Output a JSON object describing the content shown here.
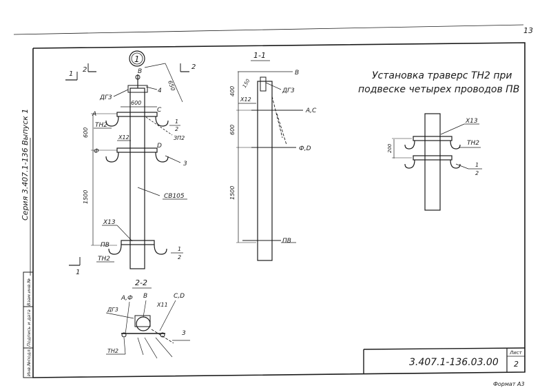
{
  "sheet_corner_number": "13",
  "series_label": "Серия 3.407.1-136 Выпуск 1",
  "title_line1": "Установка траверс ТН2 при",
  "title_line2": "подвеске четырех проводов ПВ",
  "view_marker": "1",
  "section_marks": {
    "left_a": "1",
    "left_b": "2",
    "right": "2",
    "bottom": "1"
  },
  "section_1_1_title": "1-1",
  "section_2_2_title": "2-2",
  "left_view": {
    "dim_top": "650",
    "dim_middle": "600",
    "dim_lower": "1500",
    "lbl_V": "В",
    "lbl_DG3": "ДГ3",
    "lbl_4": "4",
    "lbl_600": "600",
    "lbl_A": "А",
    "lbl_C": "С",
    "lbl_TH2_top": "ТН2",
    "lbl_1_top": "1",
    "lbl_2_top": "2",
    "lbl_X12": "Х12",
    "lbl_ZP2": "ЗП2",
    "lbl_Phi": "Ф",
    "lbl_D": "D",
    "lbl_3": "3",
    "lbl_SV105": "СВ105",
    "lbl_X13": "Х13",
    "lbl_PV": "ПВ",
    "lbl_TH2_bottom": "ТН2",
    "lbl_1_bottom": "1",
    "lbl_2_bottom": "2"
  },
  "section_1_1": {
    "dim_top": "400",
    "dim_small": "150",
    "dim_middle": "600",
    "dim_lower": "1500",
    "lbl_V": "В",
    "lbl_DG3": "ДГ3",
    "lbl_X12": "Х12",
    "lbl_AC": "А,С",
    "lbl_PhiD": "Ф,D",
    "lbl_PV": "ПВ"
  },
  "right_view": {
    "lbl_X13": "Х13",
    "lbl_TH2": "ТН2",
    "dim": "200",
    "lbl_1": "1",
    "lbl_2": "2"
  },
  "section_2_2": {
    "lbl_APhi": "А,Ф",
    "lbl_V": "В",
    "lbl_CD": "С,D",
    "lbl_DG3": "ДГ3",
    "lbl_X11": "Х11",
    "lbl_3": "3",
    "lbl_TH2": "ТН2"
  },
  "side_stamp": [
    "Инв.№подл.",
    "Подпись и дата",
    "Взам.инв.№"
  ],
  "title_block": {
    "doc_code": "3.407.1-136.03.00",
    "sheet_label": "Лист",
    "sheet_number": "2"
  },
  "footer_text": "Формат А3"
}
